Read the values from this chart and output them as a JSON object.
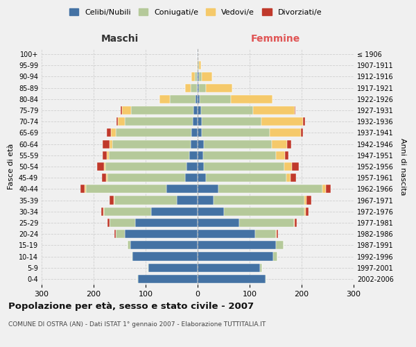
{
  "age_groups": [
    "0-4",
    "5-9",
    "10-14",
    "15-19",
    "20-24",
    "25-29",
    "30-34",
    "35-39",
    "40-44",
    "45-49",
    "50-54",
    "55-59",
    "60-64",
    "65-69",
    "70-74",
    "75-79",
    "80-84",
    "85-89",
    "90-94",
    "95-99",
    "100+"
  ],
  "birth_years": [
    "2002-2006",
    "1997-2001",
    "1992-1996",
    "1987-1991",
    "1982-1986",
    "1977-1981",
    "1972-1976",
    "1967-1971",
    "1962-1966",
    "1957-1961",
    "1952-1956",
    "1947-1951",
    "1942-1946",
    "1937-1941",
    "1932-1936",
    "1927-1931",
    "1922-1926",
    "1917-1921",
    "1912-1916",
    "1907-1911",
    "≤ 1906"
  ],
  "males_celibe": [
    115,
    95,
    125,
    130,
    140,
    120,
    90,
    40,
    60,
    24,
    22,
    16,
    14,
    12,
    10,
    8,
    4,
    2,
    2,
    0,
    1
  ],
  "males_coniugato": [
    1,
    1,
    2,
    5,
    18,
    50,
    90,
    120,
    155,
    150,
    155,
    155,
    150,
    145,
    130,
    120,
    50,
    12,
    4,
    0,
    0
  ],
  "males_vedovo": [
    0,
    0,
    0,
    0,
    0,
    0,
    1,
    1,
    2,
    2,
    3,
    4,
    5,
    10,
    14,
    18,
    20,
    10,
    6,
    2,
    0
  ],
  "males_divorziato": [
    0,
    0,
    0,
    0,
    2,
    4,
    4,
    8,
    8,
    8,
    14,
    8,
    14,
    8,
    2,
    2,
    0,
    0,
    0,
    0,
    0
  ],
  "females_nubile": [
    130,
    120,
    145,
    150,
    110,
    80,
    50,
    30,
    40,
    16,
    12,
    10,
    12,
    8,
    8,
    6,
    4,
    2,
    2,
    0,
    0
  ],
  "females_coniugata": [
    2,
    4,
    8,
    15,
    40,
    105,
    155,
    175,
    200,
    155,
    155,
    140,
    130,
    130,
    115,
    100,
    60,
    14,
    6,
    2,
    0
  ],
  "females_vedova": [
    0,
    0,
    0,
    0,
    2,
    2,
    3,
    4,
    6,
    8,
    14,
    18,
    30,
    60,
    80,
    80,
    80,
    50,
    20,
    4,
    0
  ],
  "females_divorziata": [
    0,
    0,
    0,
    0,
    2,
    4,
    5,
    10,
    10,
    10,
    14,
    6,
    8,
    4,
    4,
    2,
    0,
    0,
    0,
    0,
    0
  ],
  "color_celibe": "#4472a4",
  "color_coniugato": "#b5c99a",
  "color_vedovo": "#f5c96a",
  "color_divorziato": "#c0392b",
  "xlim": 300,
  "title": "Popolazione per età, sesso e stato civile - 2007",
  "subtitle": "COMUNE DI OSTRA (AN) - Dati ISTAT 1° gennaio 2007 - Elaborazione TUTTITALIA.IT",
  "ylabel_left": "Fasce di età",
  "ylabel_right": "Anni di nascita",
  "label_maschi": "Maschi",
  "label_femmine": "Femmine",
  "legend_labels": [
    "Celibi/Nubili",
    "Coniugati/e",
    "Vedovi/e",
    "Divorziati/e"
  ],
  "background_color": "#f0f0f0",
  "bar_height": 0.75
}
